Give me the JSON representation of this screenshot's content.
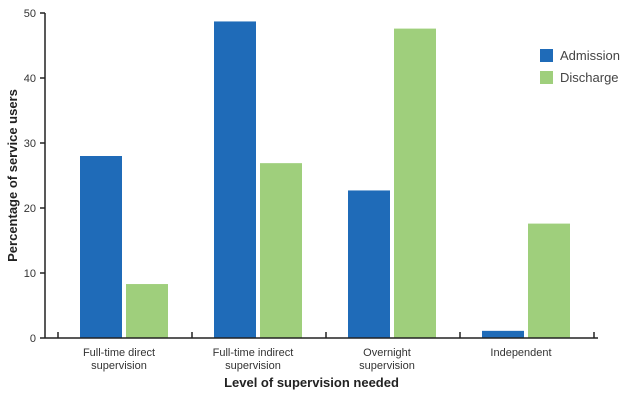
{
  "chart_data": {
    "type": "bar",
    "title": "",
    "xlabel": "Level of supervision needed",
    "ylabel": "Percentage of service users",
    "categories": [
      [
        "Full-time direct",
        "supervision"
      ],
      [
        "Full-time indirect",
        "supervision"
      ],
      [
        "Overnight",
        "supervision"
      ],
      [
        "Independent"
      ]
    ],
    "series": [
      {
        "name": "Admission",
        "values": [
          28,
          48.7,
          22.7,
          1.1
        ],
        "color": "#1f6bb8"
      },
      {
        "name": "Discharge",
        "values": [
          8.3,
          26.9,
          47.6,
          17.6
        ],
        "color": "#9fcf7c"
      }
    ],
    "ylim": [
      0,
      50
    ],
    "yticks": [
      0,
      10,
      20,
      30,
      40,
      50
    ],
    "grid": false,
    "legend_position": "top-right"
  }
}
